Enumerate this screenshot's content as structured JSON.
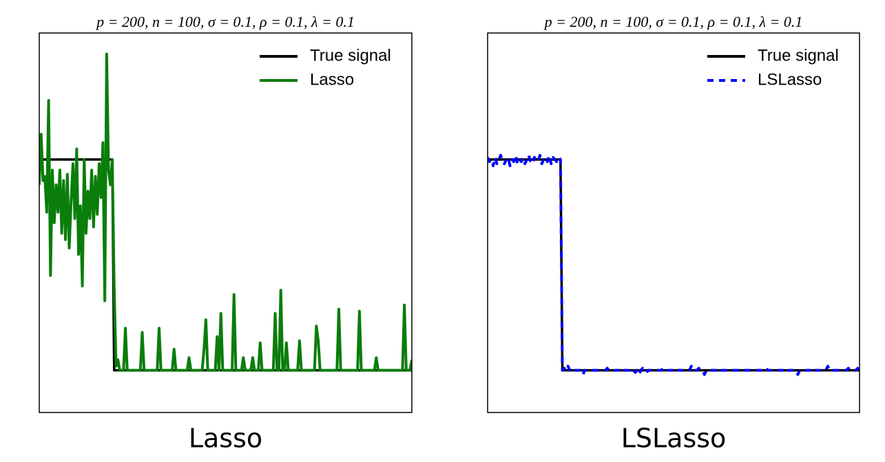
{
  "chart_data": [
    {
      "type": "line",
      "title": "p = 200, n = 100, σ = 0.1, ρ = 0.1, λ = 0.1",
      "xlabel": "Lasso",
      "xlim": [
        1,
        200
      ],
      "ylim": [
        -0.2,
        1.6
      ],
      "legend": "upper right",
      "series": [
        {
          "name": "True signal",
          "color": "#000000",
          "dash": "solid",
          "values": [
            1,
            1,
            1,
            1,
            1,
            1,
            1,
            1,
            1,
            1,
            1,
            1,
            1,
            1,
            1,
            1,
            1,
            1,
            1,
            1,
            1,
            1,
            1,
            1,
            1,
            1,
            1,
            1,
            1,
            1,
            1,
            1,
            1,
            1,
            1,
            1,
            1,
            1,
            1,
            1,
            0,
            0,
            0,
            0,
            0,
            0,
            0,
            0,
            0,
            0,
            0,
            0,
            0,
            0,
            0,
            0,
            0,
            0,
            0,
            0,
            0,
            0,
            0,
            0,
            0,
            0,
            0,
            0,
            0,
            0,
            0,
            0,
            0,
            0,
            0,
            0,
            0,
            0,
            0,
            0,
            0,
            0,
            0,
            0,
            0,
            0,
            0,
            0,
            0,
            0,
            0,
            0,
            0,
            0,
            0,
            0,
            0,
            0,
            0,
            0,
            0,
            0,
            0,
            0,
            0,
            0,
            0,
            0,
            0,
            0,
            0,
            0,
            0,
            0,
            0,
            0,
            0,
            0,
            0,
            0,
            0,
            0,
            0,
            0,
            0,
            0,
            0,
            0,
            0,
            0,
            0,
            0,
            0,
            0,
            0,
            0,
            0,
            0,
            0,
            0,
            0,
            0,
            0,
            0,
            0,
            0,
            0,
            0,
            0,
            0,
            0,
            0,
            0,
            0,
            0,
            0,
            0,
            0,
            0,
            0,
            0,
            0,
            0,
            0,
            0,
            0,
            0,
            0,
            0,
            0,
            0,
            0,
            0,
            0,
            0,
            0,
            0,
            0,
            0,
            0,
            0,
            0,
            0,
            0,
            0,
            0,
            0,
            0,
            0,
            0,
            0,
            0,
            0,
            0,
            0,
            0,
            0,
            0,
            0,
            0
          ]
        },
        {
          "name": "Lasso",
          "color": "#0a7d0a",
          "dash": "solid",
          "values": [
            0.88,
            1.12,
            0.9,
            0.92,
            0.75,
            1.28,
            0.45,
            0.95,
            0.7,
            0.88,
            0.75,
            0.95,
            0.65,
            0.9,
            0.62,
            0.93,
            0.58,
            0.8,
            0.98,
            0.72,
            1.05,
            0.55,
            0.78,
            0.4,
            1.0,
            0.65,
            0.85,
            0.72,
            0.95,
            0.68,
            0.92,
            0.74,
            0.98,
            0.82,
            1.08,
            0.33,
            1.5,
            0.95,
            0.88,
            1.0,
            0.4,
            0.02,
            0.05,
            0,
            0,
            0,
            0.2,
            0,
            0,
            0,
            0,
            0,
            0,
            0,
            0,
            0.18,
            0,
            0,
            0,
            0,
            0,
            0,
            0,
            0,
            0.2,
            0,
            0,
            0,
            0,
            0,
            0,
            0,
            0.1,
            0,
            0,
            0,
            0,
            0,
            0,
            0,
            0.06,
            0,
            0,
            0,
            0,
            0,
            0,
            0,
            0.1,
            0.24,
            0,
            0,
            0,
            0,
            0,
            0.16,
            0,
            0.27,
            0,
            0,
            0,
            0,
            0,
            0,
            0.36,
            0,
            0,
            0,
            0,
            0.06,
            0,
            0,
            0,
            0,
            0.06,
            0,
            0,
            0,
            0.13,
            0,
            0,
            0,
            0,
            0,
            0,
            0,
            0.27,
            0,
            0,
            0.38,
            0,
            0,
            0.13,
            0,
            0,
            0,
            0,
            0,
            0,
            0.14,
            0,
            0,
            0,
            0,
            0,
            0,
            0,
            0,
            0.21,
            0.14,
            0,
            0,
            0,
            0,
            0,
            0,
            0,
            0,
            0,
            0,
            0.29,
            0,
            0,
            0,
            0,
            0,
            0,
            0,
            0,
            0,
            0,
            0.28,
            0,
            0,
            0,
            0,
            0,
            0,
            0,
            0,
            0.06,
            0,
            0,
            0,
            0,
            0,
            0,
            0,
            0,
            0,
            0,
            0,
            0,
            0,
            0,
            0.31,
            0,
            0,
            0,
            0.05
          ]
        }
      ]
    },
    {
      "type": "line",
      "title": "p = 200, n = 100, σ = 0.1, ρ = 0.1, λ = 0.1",
      "xlabel": "LSLasso",
      "xlim": [
        1,
        200
      ],
      "ylim": [
        -0.2,
        1.6
      ],
      "legend": "upper right",
      "series": [
        {
          "name": "True signal",
          "color": "#000000",
          "dash": "solid",
          "values": [
            1,
            1,
            1,
            1,
            1,
            1,
            1,
            1,
            1,
            1,
            1,
            1,
            1,
            1,
            1,
            1,
            1,
            1,
            1,
            1,
            1,
            1,
            1,
            1,
            1,
            1,
            1,
            1,
            1,
            1,
            1,
            1,
            1,
            1,
            1,
            1,
            1,
            1,
            1,
            1,
            0,
            0,
            0,
            0,
            0,
            0,
            0,
            0,
            0,
            0,
            0,
            0,
            0,
            0,
            0,
            0,
            0,
            0,
            0,
            0,
            0,
            0,
            0,
            0,
            0,
            0,
            0,
            0,
            0,
            0,
            0,
            0,
            0,
            0,
            0,
            0,
            0,
            0,
            0,
            0,
            0,
            0,
            0,
            0,
            0,
            0,
            0,
            0,
            0,
            0,
            0,
            0,
            0,
            0,
            0,
            0,
            0,
            0,
            0,
            0,
            0,
            0,
            0,
            0,
            0,
            0,
            0,
            0,
            0,
            0,
            0,
            0,
            0,
            0,
            0,
            0,
            0,
            0,
            0,
            0,
            0,
            0,
            0,
            0,
            0,
            0,
            0,
            0,
            0,
            0,
            0,
            0,
            0,
            0,
            0,
            0,
            0,
            0,
            0,
            0,
            0,
            0,
            0,
            0,
            0,
            0,
            0,
            0,
            0,
            0,
            0,
            0,
            0,
            0,
            0,
            0,
            0,
            0,
            0,
            0,
            0,
            0,
            0,
            0,
            0,
            0,
            0,
            0,
            0,
            0,
            0,
            0,
            0,
            0,
            0,
            0,
            0,
            0,
            0,
            0,
            0,
            0,
            0,
            0,
            0,
            0,
            0,
            0,
            0,
            0,
            0,
            0,
            0,
            0,
            0,
            0,
            0,
            0,
            0,
            0
          ]
        },
        {
          "name": "LSLasso",
          "color": "#0000ff",
          "dash": "dashed",
          "values": [
            1.01,
            0.99,
            1.0,
            0.97,
            1.01,
            0.98,
            1.0,
            1.02,
            0.99,
            0.98,
            1.0,
            1.01,
            0.97,
            1.0,
            0.99,
            1.02,
            0.98,
            1.0,
            0.99,
            1.01,
            0.98,
            1.0,
            1.02,
            0.99,
            0.98,
            1.01,
            1.0,
            0.99,
            1.02,
            0.98,
            1.0,
            1.01,
            0.99,
            1.02,
            0.98,
            1.01,
            1.0,
            0.99,
            1.01,
            1.0,
            0,
            0.01,
            0,
            0.02,
            0,
            0,
            -0.01,
            0,
            0,
            0,
            0,
            -0.02,
            0,
            0,
            0,
            0,
            0,
            0,
            0,
            0,
            0,
            0,
            0,
            0,
            0.01,
            0,
            0,
            0,
            0,
            0,
            0,
            0,
            -0.01,
            0,
            0,
            0,
            0,
            0.01,
            0,
            -0.01,
            0,
            -0.02,
            0,
            0.01,
            0,
            -0.01,
            0,
            0,
            0,
            0,
            0,
            0,
            0,
            0,
            0.01,
            0,
            0,
            0,
            0,
            0,
            0,
            0.01,
            0,
            0,
            0,
            0,
            0,
            0,
            0,
            0.02,
            0,
            0,
            0,
            0.01,
            0,
            0,
            -0.02,
            0,
            0,
            0,
            0,
            0,
            0,
            0,
            0.01,
            0,
            0,
            0,
            0,
            0,
            0,
            0,
            0,
            0,
            0,
            0,
            0,
            0,
            0,
            0,
            0,
            0,
            0,
            0,
            0,
            0,
            0,
            0,
            0,
            0.01,
            0,
            0,
            0,
            0,
            0,
            0,
            0,
            0,
            0,
            0,
            -0.01,
            0,
            0,
            0,
            0,
            0,
            -0.02,
            0,
            0,
            0,
            0,
            0,
            0,
            0,
            0.01,
            0,
            0,
            0,
            0,
            0,
            0,
            0,
            0.02,
            0,
            0,
            0,
            0,
            0,
            0,
            0,
            0,
            0,
            0,
            0.01,
            0,
            0,
            0,
            0,
            0.01,
            0
          ]
        }
      ]
    }
  ]
}
